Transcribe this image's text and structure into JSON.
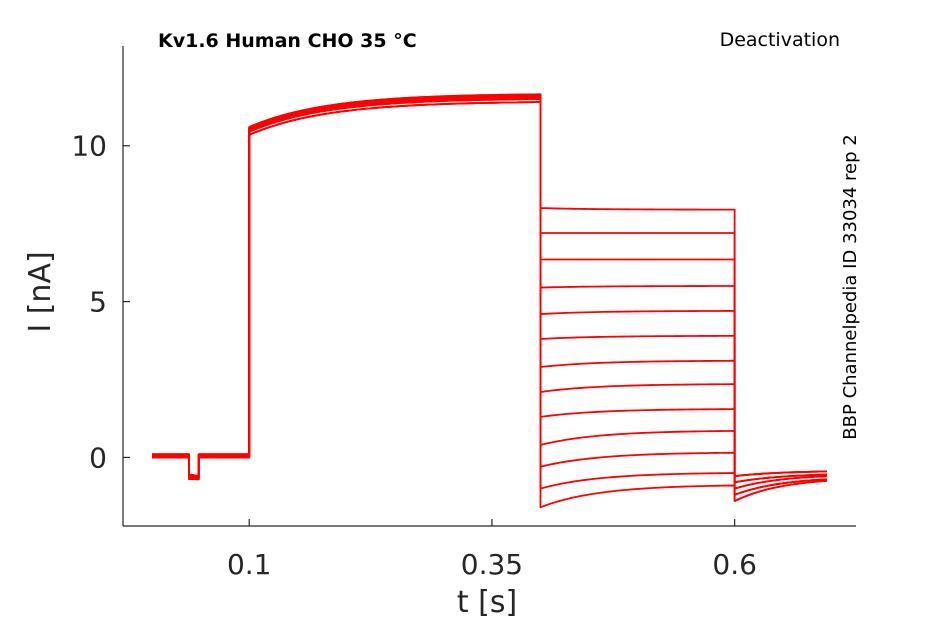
{
  "chart_data": {
    "type": "line",
    "title": "Kv1.6  Human  CHO  35 °C",
    "protocol": "Deactivation",
    "side_label": "BBP Channelpedia ID 33034 rep 2",
    "xlabel": "t [s]",
    "ylabel": "I [nA]",
    "xlim": [
      -0.03,
      0.725
    ],
    "ylim": [
      -2.2,
      13.2
    ],
    "x_ticks": [
      {
        "value": 0.1,
        "label": "0.1"
      },
      {
        "value": 0.35,
        "label": "0.35"
      },
      {
        "value": 0.6,
        "label": "0.6"
      }
    ],
    "y_ticks": [
      {
        "value": 0,
        "label": "0"
      },
      {
        "value": 5,
        "label": "5"
      },
      {
        "value": 10,
        "label": "10"
      }
    ],
    "grid": false,
    "trace_color": "#ff0000",
    "protocol_times": {
      "baseline_start": 0.0,
      "test_pulse_start": 0.038,
      "test_pulse_end": 0.048,
      "activation_start": 0.1,
      "deactivation_start": 0.4,
      "deactivation_end": 0.6,
      "end": 0.695
    },
    "activation_peak_nA": [
      10.35,
      10.45,
      10.5,
      10.55,
      10.6
    ],
    "activation_end_nA": [
      11.4,
      11.5,
      11.55,
      11.6,
      11.65
    ],
    "deactivation_sweeps": [
      {
        "start_nA": 8.0,
        "end_nA": 7.95
      },
      {
        "start_nA": 7.2,
        "end_nA": 7.2
      },
      {
        "start_nA": 6.35,
        "end_nA": 6.35
      },
      {
        "start_nA": 5.45,
        "end_nA": 5.5
      },
      {
        "start_nA": 4.6,
        "end_nA": 4.7
      },
      {
        "start_nA": 3.8,
        "end_nA": 3.9
      },
      {
        "start_nA": 2.9,
        "end_nA": 3.1
      },
      {
        "start_nA": 2.1,
        "end_nA": 2.35
      },
      {
        "start_nA": 1.3,
        "end_nA": 1.55
      },
      {
        "start_nA": 0.4,
        "end_nA": 0.85
      },
      {
        "start_nA": -0.3,
        "end_nA": 0.15
      },
      {
        "start_nA": -1.0,
        "end_nA": -0.5
      },
      {
        "start_nA": -1.6,
        "end_nA": -0.9
      }
    ],
    "tail_start_nA": [
      -0.6,
      -0.8,
      -1.0,
      -1.2,
      -1.4
    ],
    "tail_end_nA": [
      -0.45,
      -0.55,
      -0.6,
      -0.7,
      -0.75
    ]
  }
}
